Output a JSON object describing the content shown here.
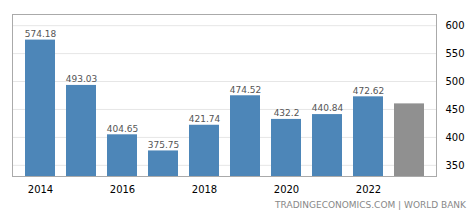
{
  "chart_data": {
    "type": "bar",
    "categories": [
      "2014",
      null,
      "2016",
      null,
      "2018",
      null,
      "2020",
      null,
      "2022",
      null
    ],
    "values": [
      574.18,
      493.03,
      404.65,
      375.75,
      421.74,
      474.52,
      432.2,
      440.84,
      472.62,
      460.0
    ],
    "value_labels": [
      "574.18",
      "493.03",
      "404.65",
      "375.75",
      "421.74",
      "474.52",
      "432.2",
      "440.84",
      "472.62",
      null
    ],
    "data_labels": true,
    "colors": [
      "#4d86b8",
      "#4d86b8",
      "#4d86b8",
      "#4d86b8",
      "#4d86b8",
      "#4d86b8",
      "#4d86b8",
      "#4d86b8",
      "#4d86b8",
      "#909090"
    ],
    "ylim": [
      330,
      620
    ],
    "yticks": [
      350,
      400,
      450,
      500,
      550,
      600
    ],
    "grid": true,
    "caption": "TRADINGECONOMICS.COM | WORLD BANK"
  }
}
